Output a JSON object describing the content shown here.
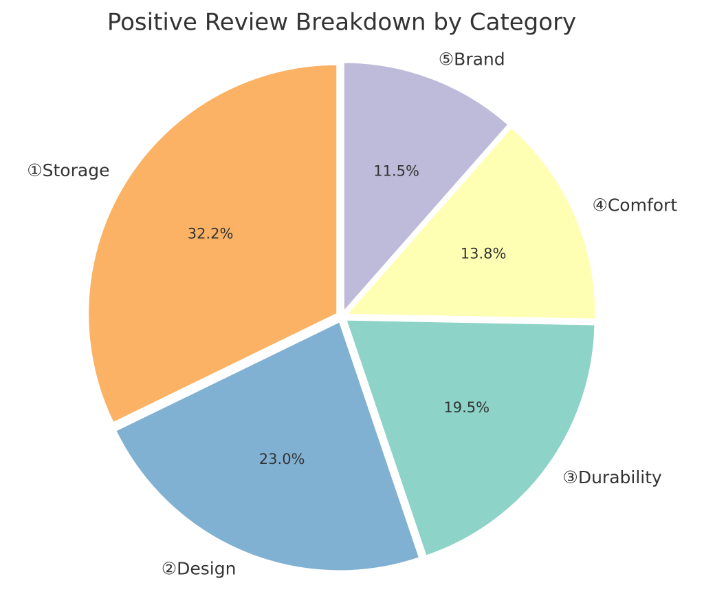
{
  "chart_data": {
    "type": "pie",
    "title": "Positive Review Breakdown by Category",
    "categories": [
      "①Storage",
      "②Design",
      "③Durability",
      "④Comfort",
      "⑤Brand"
    ],
    "values": [
      32.2,
      23.0,
      19.5,
      13.8,
      11.5
    ],
    "value_labels": [
      "32.2%",
      "23.0%",
      "19.5%",
      "13.8%",
      "11.5%"
    ],
    "colors": [
      "#fbb264",
      "#80b1d3",
      "#8dd3c7",
      "#ffffb3",
      "#bebada"
    ]
  }
}
